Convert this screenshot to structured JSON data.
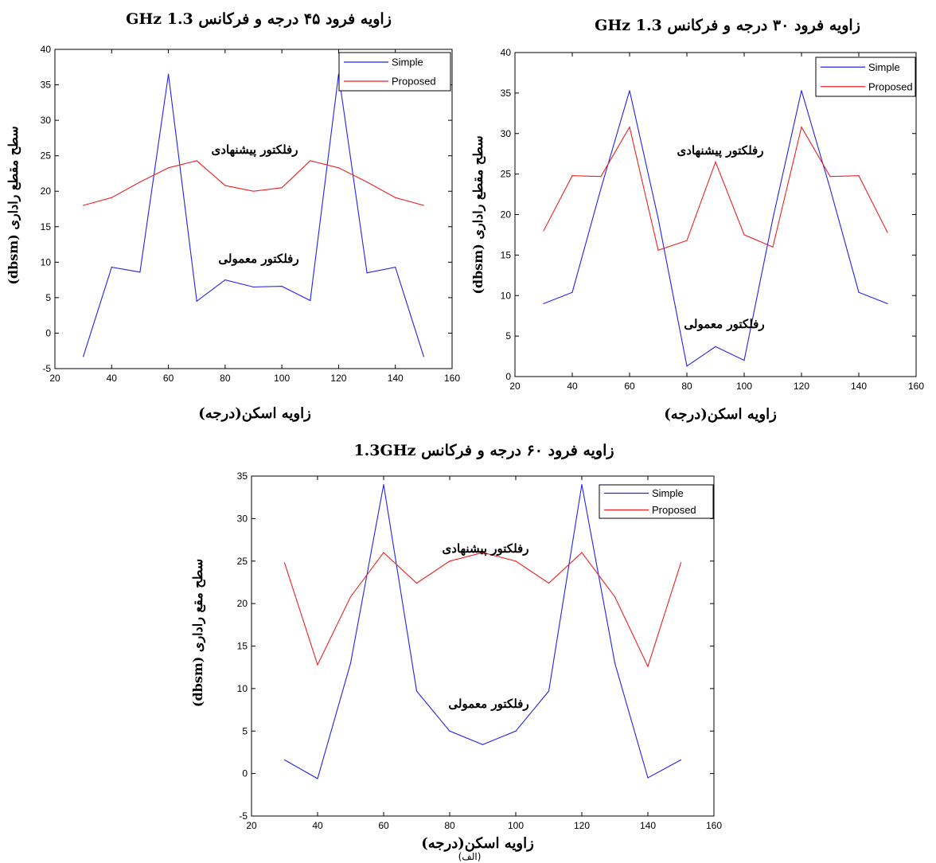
{
  "caption": "(الف)",
  "colors": {
    "simple": "#2222ee",
    "proposed": "#ee2222"
  },
  "chart_data": [
    {
      "type": "line",
      "title": "زاویه فرود ۴۵ درجه و فرکانس 1.3 GHz",
      "xlabel": "زاویه اسکن(درجه)",
      "ylabel": "سطح مقطع راداری (dbsm)",
      "xlim": [
        20,
        160
      ],
      "ylim": [
        -5,
        40
      ],
      "xticks": [
        20,
        40,
        60,
        80,
        100,
        120,
        140,
        160
      ],
      "yticks": [
        -5,
        0,
        5,
        10,
        15,
        20,
        25,
        30,
        35,
        40
      ],
      "legend": "top-right",
      "x": [
        30,
        40,
        50,
        60,
        70,
        80,
        90,
        100,
        110,
        120,
        130,
        140,
        150
      ],
      "series": [
        {
          "name": "Simple",
          "values": [
            -3.3,
            9.3,
            8.6,
            36.5,
            4.5,
            7.5,
            6.5,
            6.6,
            4.6,
            36.5,
            8.5,
            9.3,
            -3.3
          ]
        },
        {
          "name": "Proposed",
          "values": [
            18.0,
            19.1,
            21.3,
            23.3,
            24.3,
            20.8,
            20.0,
            20.5,
            24.3,
            23.3,
            21.3,
            19.1,
            18.0
          ]
        }
      ],
      "annotations": [
        "رفلکتور پیشنهادی",
        "رفلکتور معمولی"
      ]
    },
    {
      "type": "line",
      "title": "زاویه فرود ۳۰ درجه و فرکانس 1.3 GHz",
      "xlabel": "زاویه اسکن(درجه)",
      "ylabel": "سطح مقطع راداری (dbsm)",
      "xlim": [
        20,
        160
      ],
      "ylim": [
        0,
        40
      ],
      "xticks": [
        20,
        40,
        60,
        80,
        100,
        120,
        140,
        160
      ],
      "yticks": [
        0,
        5,
        10,
        15,
        20,
        25,
        30,
        35,
        40
      ],
      "legend": "top-right",
      "x": [
        30,
        40,
        50,
        60,
        70,
        80,
        90,
        100,
        110,
        120,
        130,
        140,
        150
      ],
      "series": [
        {
          "name": "Simple",
          "values": [
            9.0,
            10.4,
            23.2,
            35.3,
            19.5,
            1.3,
            3.7,
            2.0,
            19.5,
            35.3,
            23.2,
            10.4,
            9.0
          ]
        },
        {
          "name": "Proposed",
          "values": [
            18.0,
            24.8,
            24.7,
            30.8,
            15.6,
            16.8,
            26.5,
            17.5,
            16.0,
            30.8,
            24.7,
            24.8,
            17.8
          ]
        }
      ],
      "annotations": [
        "رفلکتور پیشنهادی",
        "رفلکتور معمولی"
      ]
    },
    {
      "type": "line",
      "title": "زاویه فرود ۶۰ درجه و فرکانس 1.3GHz",
      "xlabel": "زاویه اسکن(درجه)",
      "ylabel": "سطح مقع راداری (dbsm)",
      "xlim": [
        20,
        160
      ],
      "ylim": [
        -5,
        35
      ],
      "xticks": [
        20,
        40,
        60,
        80,
        100,
        120,
        140,
        160
      ],
      "yticks": [
        -5,
        0,
        5,
        10,
        15,
        20,
        25,
        30,
        35
      ],
      "legend": "top-right",
      "x": [
        30,
        40,
        50,
        60,
        70,
        80,
        90,
        100,
        110,
        120,
        130,
        140,
        150
      ],
      "series": [
        {
          "name": "Simple",
          "values": [
            1.6,
            -0.6,
            13.0,
            34.0,
            9.7,
            5.0,
            3.4,
            5.0,
            9.7,
            34.0,
            13.0,
            -0.5,
            1.6
          ]
        },
        {
          "name": "Proposed",
          "values": [
            24.8,
            12.8,
            20.8,
            26.0,
            22.4,
            25.0,
            26.0,
            25.0,
            22.4,
            26.0,
            20.8,
            12.6,
            24.8
          ]
        }
      ],
      "annotations": [
        "رفلکتور پیشنهادی",
        "رفلکتور معمولی"
      ]
    }
  ]
}
